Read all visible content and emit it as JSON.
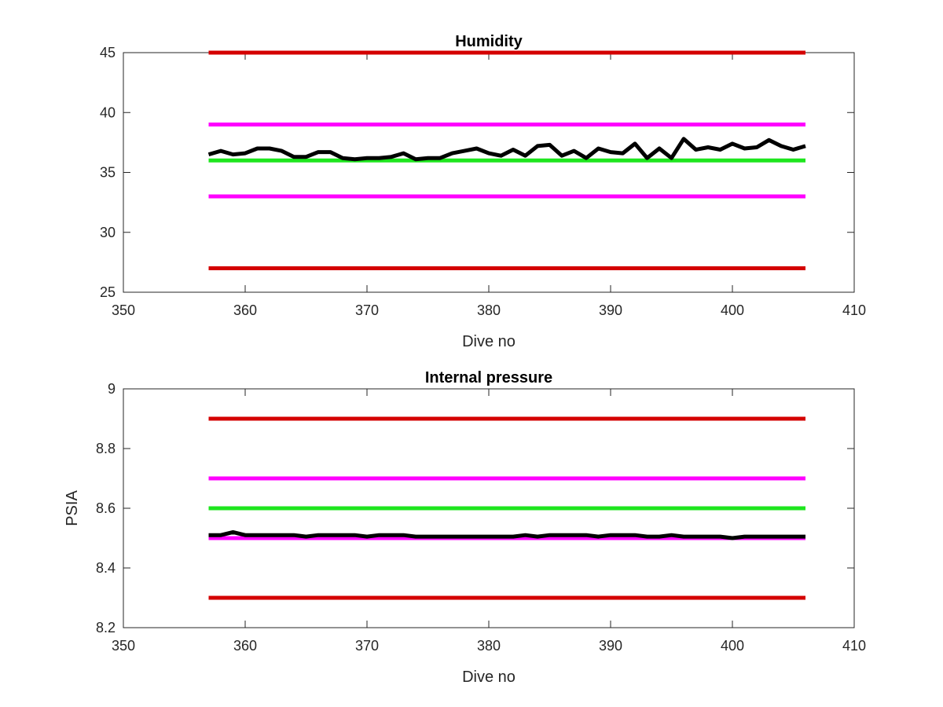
{
  "chart_data": [
    {
      "type": "line",
      "title": "Humidity",
      "xlabel": "Dive no",
      "ylabel": "",
      "xlim": [
        350,
        410
      ],
      "ylim": [
        25,
        45
      ],
      "xticks": [
        "350",
        "360",
        "370",
        "380",
        "390",
        "400",
        "410"
      ],
      "yticks": [
        "25",
        "30",
        "35",
        "40",
        "45"
      ],
      "grid": false,
      "series": [
        {
          "color": "#d40000",
          "x": [
            357,
            406
          ],
          "values": [
            45,
            45
          ]
        },
        {
          "color": "#ff00ff",
          "x": [
            357,
            406
          ],
          "values": [
            39,
            39
          ]
        },
        {
          "color": "#1ee61e",
          "x": [
            357,
            406
          ],
          "values": [
            36,
            36
          ]
        },
        {
          "color": "#ff00ff",
          "x": [
            357,
            406
          ],
          "values": [
            33,
            33
          ]
        },
        {
          "color": "#d40000",
          "x": [
            357,
            406
          ],
          "values": [
            27,
            27
          ]
        },
        {
          "color": "#000000",
          "x": [
            357,
            358,
            359,
            360,
            361,
            362,
            363,
            364,
            365,
            366,
            367,
            368,
            369,
            370,
            371,
            372,
            373,
            374,
            375,
            376,
            377,
            378,
            379,
            380,
            381,
            382,
            383,
            384,
            385,
            386,
            387,
            388,
            389,
            390,
            391,
            392,
            393,
            394,
            395,
            396,
            397,
            398,
            399,
            400,
            401,
            402,
            403,
            404,
            405,
            406
          ],
          "values": [
            36.5,
            36.8,
            36.5,
            36.6,
            37.0,
            37.0,
            36.8,
            36.3,
            36.3,
            36.7,
            36.7,
            36.2,
            36.1,
            36.2,
            36.2,
            36.3,
            36.6,
            36.1,
            36.2,
            36.2,
            36.6,
            36.8,
            37.0,
            36.6,
            36.4,
            36.9,
            36.4,
            37.2,
            37.3,
            36.4,
            36.8,
            36.2,
            37.0,
            36.7,
            36.6,
            37.4,
            36.2,
            37.0,
            36.2,
            37.8,
            36.9,
            37.1,
            36.9,
            37.4,
            37.0,
            37.1,
            37.7,
            37.2,
            36.9,
            37.2
          ]
        }
      ]
    },
    {
      "type": "line",
      "title": "Internal pressure",
      "xlabel": "Dive no",
      "ylabel": "PSIA",
      "xlim": [
        350,
        410
      ],
      "ylim": [
        8.2,
        9.0
      ],
      "xticks": [
        "350",
        "360",
        "370",
        "380",
        "390",
        "400",
        "410"
      ],
      "yticks": [
        "8.2",
        "8.4",
        "8.6",
        "8.8",
        "9"
      ],
      "grid": false,
      "series": [
        {
          "color": "#d40000",
          "x": [
            357,
            406
          ],
          "values": [
            8.9,
            8.9
          ]
        },
        {
          "color": "#ff00ff",
          "x": [
            357,
            406
          ],
          "values": [
            8.7,
            8.7
          ]
        },
        {
          "color": "#1ee61e",
          "x": [
            357,
            406
          ],
          "values": [
            8.6,
            8.6
          ]
        },
        {
          "color": "#ff00ff",
          "x": [
            357,
            406
          ],
          "values": [
            8.5,
            8.5
          ]
        },
        {
          "color": "#d40000",
          "x": [
            357,
            406
          ],
          "values": [
            8.3,
            8.3
          ]
        },
        {
          "color": "#000000",
          "x": [
            357,
            358,
            359,
            360,
            361,
            362,
            363,
            364,
            365,
            366,
            367,
            368,
            369,
            370,
            371,
            372,
            373,
            374,
            375,
            376,
            377,
            378,
            379,
            380,
            381,
            382,
            383,
            384,
            385,
            386,
            387,
            388,
            389,
            390,
            391,
            392,
            393,
            394,
            395,
            396,
            397,
            398,
            399,
            400,
            401,
            402,
            403,
            404,
            405,
            406
          ],
          "values": [
            8.51,
            8.51,
            8.52,
            8.51,
            8.51,
            8.51,
            8.51,
            8.51,
            8.505,
            8.51,
            8.51,
            8.51,
            8.51,
            8.505,
            8.51,
            8.51,
            8.51,
            8.505,
            8.505,
            8.505,
            8.505,
            8.505,
            8.505,
            8.505,
            8.505,
            8.505,
            8.51,
            8.505,
            8.51,
            8.51,
            8.51,
            8.51,
            8.505,
            8.51,
            8.51,
            8.51,
            8.505,
            8.505,
            8.51,
            8.505,
            8.505,
            8.505,
            8.505,
            8.5,
            8.505,
            8.505,
            8.505,
            8.505,
            8.505,
            8.505
          ]
        }
      ]
    }
  ]
}
